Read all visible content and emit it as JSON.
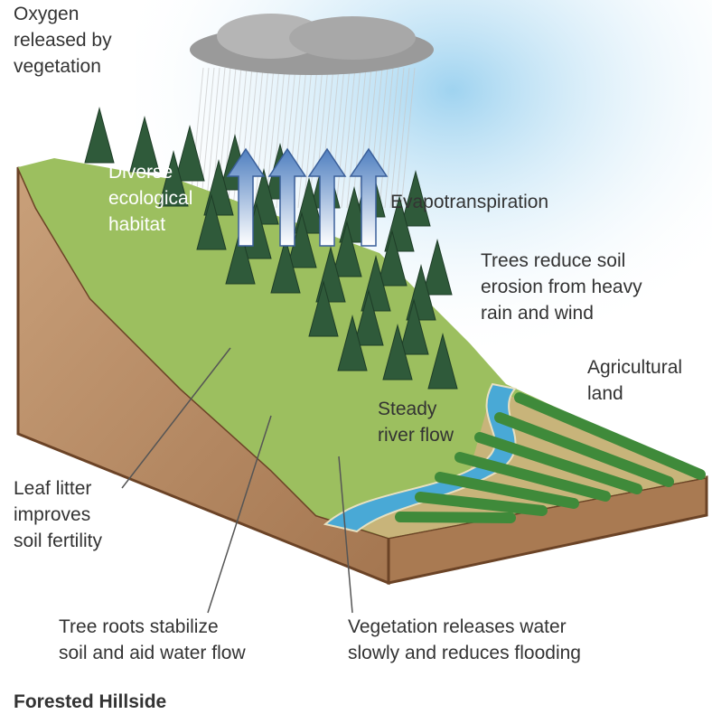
{
  "title": "Forested Hillside",
  "labels": [
    {
      "lines": [
        "Oxygen",
        "released by",
        "vegetation"
      ]
    },
    {
      "lines": [
        "Diverse",
        "ecological",
        "habitat"
      ]
    },
    {
      "lines": [
        "Evapotranspiration"
      ]
    },
    {
      "lines": [
        "Trees reduce soil",
        "erosion from heavy",
        "rain and wind"
      ]
    },
    {
      "lines": [
        "Agricultural",
        "land"
      ]
    },
    {
      "lines": [
        "Steady",
        "river flow"
      ]
    },
    {
      "lines": [
        "Leaf litter",
        "improves",
        "soil fertility"
      ]
    },
    {
      "lines": [
        "Tree roots stabilize",
        "soil and aid water flow"
      ]
    },
    {
      "lines": [
        "Vegetation releases water",
        "slowly and reduces flooding"
      ]
    }
  ]
}
